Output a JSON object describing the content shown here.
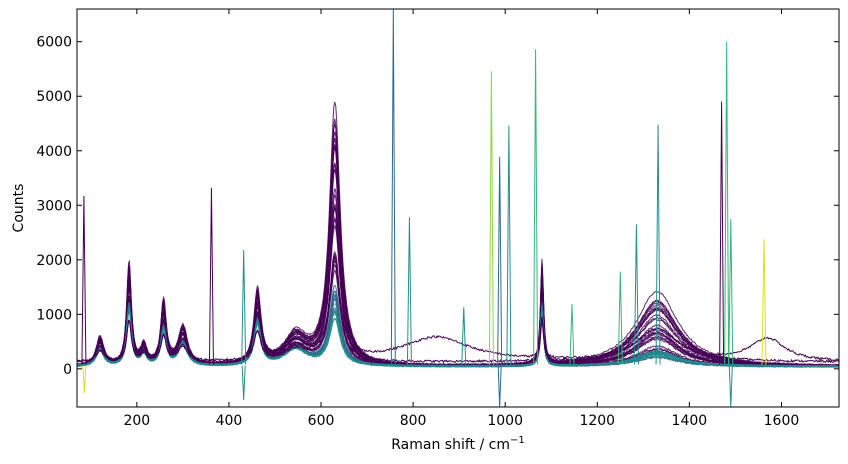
{
  "chart_data": {
    "type": "line",
    "title": "",
    "xlabel": "Raman shift / cm",
    "xlabel_superscript": "−1",
    "ylabel": "Counts",
    "xlim": [
      70,
      1725
    ],
    "ylim": [
      -700,
      6600
    ],
    "xticks": [
      200,
      400,
      600,
      800,
      1000,
      1200,
      1400,
      1600
    ],
    "yticks": [
      0,
      1000,
      2000,
      3000,
      4000,
      5000,
      6000
    ],
    "grid": false,
    "legend": "none",
    "colormap": "viridis",
    "series_count_approx": 40,
    "colors": {
      "purple": "#440154",
      "blue": "#31688e",
      "teal": "#21918c",
      "green": "#35b779",
      "lightgreen": "#90d743",
      "yellow": "#d8e219"
    },
    "peaks": [
      {
        "x": 120,
        "height": 520,
        "width": 10
      },
      {
        "x": 183,
        "height": 1850,
        "width": 6
      },
      {
        "x": 215,
        "height": 350,
        "width": 8
      },
      {
        "x": 258,
        "height": 1150,
        "width": 7
      },
      {
        "x": 300,
        "height": 700,
        "width": 12
      },
      {
        "x": 462,
        "height": 1330,
        "width": 9
      },
      {
        "x": 545,
        "height": 550,
        "width": 30
      },
      {
        "x": 630,
        "height": 4550,
        "width": 14
      },
      {
        "x": 1080,
        "height": 1850,
        "width": 4
      },
      {
        "x": 1330,
        "height": 1500,
        "width": 55
      }
    ],
    "spikes": [
      {
        "x": 85,
        "y": 3170,
        "color": "purple"
      },
      {
        "x": 362,
        "y": 3320,
        "color": "purple"
      },
      {
        "x": 432,
        "y": 2180,
        "color": "teal"
      },
      {
        "x": 757,
        "y": 6600,
        "color": "blue"
      },
      {
        "x": 792,
        "y": 2780,
        "color": "teal"
      },
      {
        "x": 910,
        "y": 1130,
        "color": "teal"
      },
      {
        "x": 970,
        "y": 5460,
        "color": "lightgreen"
      },
      {
        "x": 988,
        "y": 3890,
        "color": "blue"
      },
      {
        "x": 1008,
        "y": 4460,
        "color": "teal"
      },
      {
        "x": 1066,
        "y": 5860,
        "color": "green"
      },
      {
        "x": 1145,
        "y": 1190,
        "color": "green"
      },
      {
        "x": 1250,
        "y": 1780,
        "color": "green"
      },
      {
        "x": 1285,
        "y": 2650,
        "color": "teal"
      },
      {
        "x": 1332,
        "y": 4480,
        "color": "teal"
      },
      {
        "x": 1470,
        "y": 4900,
        "color": "purple"
      },
      {
        "x": 1481,
        "y": 6000,
        "color": "green"
      },
      {
        "x": 1490,
        "y": 2750,
        "color": "green"
      },
      {
        "x": 1562,
        "y": 2380,
        "color": "yellow"
      }
    ],
    "negative_dips": [
      {
        "x": 86,
        "y": -450,
        "color": "yellow"
      },
      {
        "x": 432,
        "y": -570,
        "color": "teal"
      },
      {
        "x": 988,
        "y": -700,
        "color": "blue"
      },
      {
        "x": 1490,
        "y": -700,
        "color": "teal"
      }
    ],
    "broad_feature": {
      "x": 850,
      "height": 450,
      "width": 90,
      "color": "purple"
    },
    "secondary_broad": {
      "x": 1570,
      "height": 420,
      "width": 45,
      "color": "purple"
    }
  }
}
